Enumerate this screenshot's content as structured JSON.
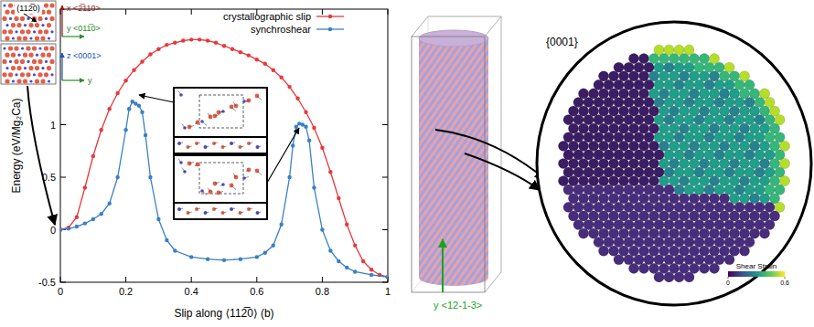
{
  "chart_data": {
    "type": "line",
    "xlabel": "Slip along ⟨112̅0⟩ (b)",
    "ylabel": "Energy (eV/Mg₂Ca)",
    "xlim": [
      0,
      1
    ],
    "xticks": [
      0,
      0.2,
      0.4,
      0.6,
      0.8,
      1
    ],
    "ylim": [
      -0.5,
      2.1
    ],
    "yticks": [
      -0.5,
      0,
      0.5,
      1
    ],
    "grid": false,
    "legend": "upper right",
    "series": [
      {
        "name": "crystallographic slip",
        "color": "#e8383b",
        "marker": "circle",
        "line_style": "solid",
        "x": [
          0,
          0.025,
          0.05,
          0.075,
          0.1,
          0.125,
          0.15,
          0.175,
          0.2,
          0.225,
          0.25,
          0.275,
          0.3,
          0.325,
          0.35,
          0.375,
          0.4,
          0.425,
          0.45,
          0.475,
          0.5,
          0.525,
          0.55,
          0.575,
          0.6,
          0.625,
          0.65,
          0.675,
          0.7,
          0.725,
          0.75,
          0.775,
          0.8,
          0.825,
          0.85,
          0.875,
          0.9,
          0.925,
          0.95,
          0.975,
          1
        ],
        "values": [
          0,
          0.02,
          0.12,
          0.4,
          0.7,
          0.95,
          1.15,
          1.3,
          1.42,
          1.52,
          1.6,
          1.67,
          1.72,
          1.76,
          1.78,
          1.8,
          1.81,
          1.81,
          1.8,
          1.78,
          1.75,
          1.72,
          1.69,
          1.66,
          1.62,
          1.58,
          1.52,
          1.45,
          1.36,
          1.25,
          1.12,
          0.97,
          0.78,
          0.55,
          0.3,
          0.05,
          -0.15,
          -0.3,
          -0.38,
          -0.43,
          -0.45
        ]
      },
      {
        "name": "synchroshear",
        "color": "#3b7fc4",
        "marker": "circle",
        "line_style": "solid",
        "x": [
          0,
          0.025,
          0.05,
          0.075,
          0.1,
          0.125,
          0.15,
          0.175,
          0.2,
          0.21,
          0.22,
          0.23,
          0.24,
          0.25,
          0.26,
          0.275,
          0.3,
          0.325,
          0.35,
          0.4,
          0.45,
          0.5,
          0.55,
          0.6,
          0.625,
          0.65,
          0.675,
          0.7,
          0.71,
          0.72,
          0.73,
          0.74,
          0.75,
          0.76,
          0.775,
          0.8,
          0.825,
          0.85,
          0.875,
          0.9,
          0.95,
          1
        ],
        "values": [
          0,
          0.01,
          0.03,
          0.06,
          0.1,
          0.15,
          0.25,
          0.5,
          0.95,
          1.15,
          1.22,
          1.2,
          1.18,
          1.12,
          0.9,
          0.5,
          0.1,
          -0.1,
          -0.2,
          -0.26,
          -0.28,
          -0.29,
          -0.28,
          -0.26,
          -0.22,
          -0.15,
          0.05,
          0.5,
          0.8,
          0.98,
          1.01,
          1.0,
          0.98,
          0.85,
          0.4,
          0,
          -0.2,
          -0.3,
          -0.36,
          -0.4,
          -0.43,
          -0.45
        ]
      }
    ],
    "annotations": [
      "(112̅0)",
      "x <2̅110>",
      "y <011̅0>",
      "z <0001>",
      "y",
      "{0001}",
      "y <12-1-3>"
    ],
    "colorbar": {
      "label": "Shear Strain",
      "range": [
        0,
        0.6
      ],
      "ticks": [
        0,
        0.6
      ]
    }
  }
}
